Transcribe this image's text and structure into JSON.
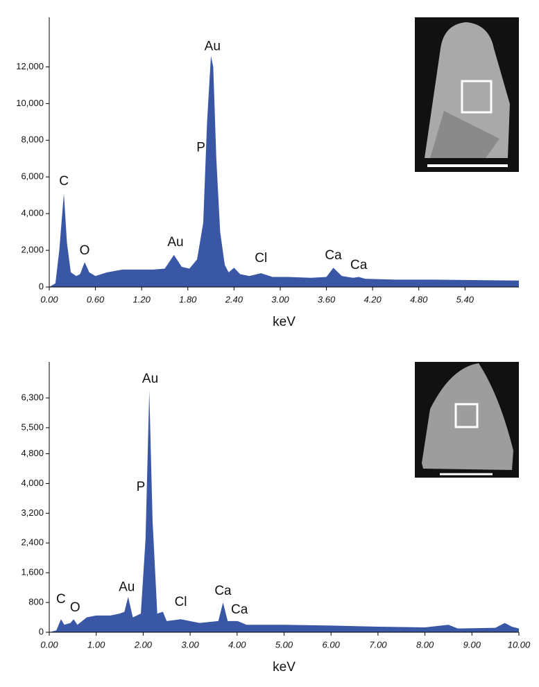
{
  "chart_data": [
    {
      "type": "area",
      "color": "#3a57a6",
      "x_label": "keV",
      "xlim": [
        0,
        6.1
      ],
      "ylim": [
        0,
        14700
      ],
      "xticks": [
        {
          "value": 0,
          "label": "0.00"
        },
        {
          "value": 0.6,
          "label": "0.60"
        },
        {
          "value": 1.2,
          "label": "1.20"
        },
        {
          "value": 1.8,
          "label": "1.80"
        },
        {
          "value": 2.4,
          "label": "2.40"
        },
        {
          "value": 3,
          "label": "3.00"
        },
        {
          "value": 3.6,
          "label": "3.60"
        },
        {
          "value": 4.2,
          "label": "4.20"
        },
        {
          "value": 4.8,
          "label": "4.80"
        },
        {
          "value": 5.4,
          "label": "5.40"
        }
      ],
      "yticks": [
        0,
        {
          "value": 2000,
          "label": "2,000"
        },
        {
          "value": 4000,
          "label": "4,000"
        },
        {
          "value": 6000,
          "label": "6,000"
        },
        {
          "value": 8000,
          "label": "8,000"
        },
        {
          "value": 10000,
          "label": "10,000"
        },
        {
          "value": 12000,
          "label": "12,000"
        }
      ],
      "x": [
        0,
        0.08,
        0.13,
        0.19,
        0.23,
        0.28,
        0.35,
        0.4,
        0.46,
        0.52,
        0.6,
        0.75,
        0.95,
        1.15,
        1.35,
        1.5,
        1.62,
        1.72,
        1.82,
        1.92,
        2.0,
        2.05,
        2.1,
        2.13,
        2.17,
        2.22,
        2.28,
        2.33,
        2.4,
        2.48,
        2.6,
        2.75,
        2.9,
        3.1,
        3.4,
        3.6,
        3.69,
        3.8,
        3.95,
        4.02,
        4.1,
        4.5,
        5.0,
        5.5,
        6.1
      ],
      "values": [
        0,
        200,
        2000,
        5100,
        2400,
        800,
        600,
        700,
        1350,
        800,
        600,
        800,
        950,
        950,
        950,
        1000,
        1750,
        1100,
        1000,
        1500,
        3500,
        9000,
        12600,
        12000,
        7000,
        3000,
        1200,
        800,
        1050,
        700,
        600,
        750,
        550,
        550,
        500,
        550,
        1050,
        600,
        500,
        550,
        450,
        400,
        400,
        380,
        350
      ],
      "annotations": [
        {
          "text": "C",
          "x": 0.19,
          "y": 5740
        },
        {
          "text": "O",
          "x": 0.46,
          "y": 1960
        },
        {
          "text": "Au",
          "x": 2.12,
          "y": 13100
        },
        {
          "text": "P",
          "x": 1.97,
          "y": 7580
        },
        {
          "text": "Au",
          "x": 1.64,
          "y": 2420
        },
        {
          "text": "Cl",
          "x": 2.75,
          "y": 1550
        },
        {
          "text": "Ca",
          "x": 3.69,
          "y": 1700
        },
        {
          "text": "Ca",
          "x": 4.02,
          "y": 1170
        }
      ]
    },
    {
      "type": "area",
      "color": "#3a57a6",
      "x_label": "keV",
      "xlim": [
        0,
        10
      ],
      "ylim": [
        0,
        7270
      ],
      "xticks": [
        {
          "value": 0,
          "label": "0.00"
        },
        {
          "value": 1,
          "label": "1.00"
        },
        {
          "value": 2,
          "label": "2.00"
        },
        {
          "value": 3,
          "label": "3.00"
        },
        {
          "value": 4,
          "label": "4.00"
        },
        {
          "value": 5,
          "label": "5.00"
        },
        {
          "value": 6,
          "label": "6.00"
        },
        {
          "value": 7,
          "label": "7.00"
        },
        {
          "value": 8,
          "label": "8.00"
        },
        {
          "value": 9,
          "label": "9.00"
        },
        {
          "value": 10,
          "label": "10.00"
        }
      ],
      "yticks": [
        0,
        800,
        {
          "value": 1600,
          "label": "1,600"
        },
        {
          "value": 2400,
          "label": "2,400"
        },
        {
          "value": 3200,
          "label": "3,200"
        },
        {
          "value": 4000,
          "label": "4,000"
        },
        {
          "value": 4800,
          "label": "4,800"
        },
        {
          "value": 5500,
          "label": "5,500"
        },
        {
          "value": 6300,
          "label": "6,300"
        }
      ],
      "x": [
        0,
        0.15,
        0.25,
        0.32,
        0.45,
        0.52,
        0.6,
        0.8,
        1.0,
        1.3,
        1.5,
        1.6,
        1.68,
        1.78,
        1.95,
        2.05,
        2.13,
        2.2,
        2.3,
        2.42,
        2.5,
        2.8,
        3.2,
        3.6,
        3.7,
        3.8,
        4.01,
        4.2,
        5,
        6,
        7,
        8,
        8.5,
        8.7,
        9.5,
        9.7,
        9.85,
        10
      ],
      "values": [
        0,
        50,
        350,
        200,
        250,
        350,
        200,
        400,
        450,
        450,
        500,
        550,
        950,
        400,
        500,
        2500,
        6500,
        3000,
        500,
        550,
        300,
        350,
        250,
        300,
        800,
        300,
        300,
        200,
        200,
        180,
        150,
        130,
        200,
        100,
        120,
        250,
        150,
        100
      ],
      "annotations": [
        {
          "text": "C",
          "x": 0.25,
          "y": 875
        },
        {
          "text": "O",
          "x": 0.55,
          "y": 650
        },
        {
          "text": "Au",
          "x": 1.65,
          "y": 1200
        },
        {
          "text": "P",
          "x": 1.95,
          "y": 3900
        },
        {
          "text": "Au",
          "x": 2.15,
          "y": 6800
        },
        {
          "text": "Cl",
          "x": 2.8,
          "y": 800
        },
        {
          "text": "Ca",
          "x": 3.7,
          "y": 1100
        },
        {
          "text": "Ca",
          "x": 4.05,
          "y": 600
        }
      ]
    }
  ]
}
